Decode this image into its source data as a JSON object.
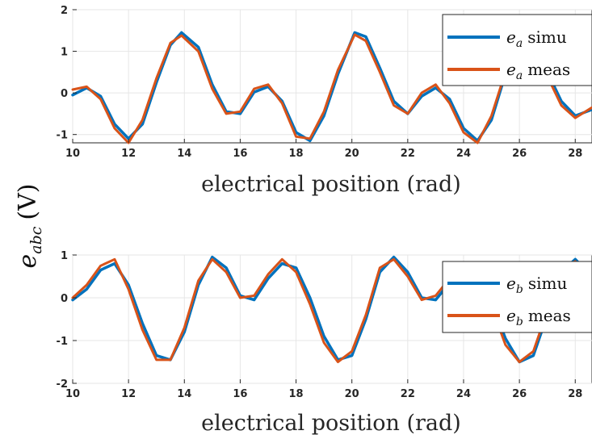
{
  "figure": {
    "ylabel_main": "e",
    "ylabel_sub": "abc",
    "ylabel_unit": "(V)"
  },
  "chart_data": [
    {
      "type": "line",
      "xlabel": "electrical position (rad)",
      "xlim": [
        10,
        28.6
      ],
      "ylim": [
        -1.2,
        2
      ],
      "xticks": [
        10,
        12,
        14,
        16,
        18,
        20,
        22,
        24,
        26,
        28
      ],
      "yticks": [
        -1,
        0,
        1,
        2
      ],
      "grid": true,
      "legend_position": "top-right",
      "series": [
        {
          "name": "e_a simu",
          "legend_symbol": "e",
          "legend_sub": "a",
          "legend_text": "simu",
          "color": "#0072BD",
          "x": [
            10.0,
            10.5,
            11.0,
            11.5,
            12.0,
            12.5,
            13.0,
            13.5,
            13.9,
            14.5,
            15.0,
            15.5,
            16.0,
            16.5,
            17.0,
            17.5,
            18.0,
            18.5,
            19.0,
            19.5,
            20.1,
            20.5,
            21.0,
            21.5,
            22.0,
            22.5,
            23.0,
            23.5,
            24.0,
            24.5,
            25.0,
            25.5,
            26.0,
            26.5,
            27.0,
            27.5,
            28.0,
            28.6
          ],
          "values": [
            -0.05,
            0.12,
            -0.08,
            -0.75,
            -1.1,
            -0.75,
            0.25,
            1.15,
            1.45,
            1.1,
            0.2,
            -0.45,
            -0.5,
            0.02,
            0.15,
            -0.2,
            -0.95,
            -1.15,
            -0.55,
            0.45,
            1.45,
            1.35,
            0.6,
            -0.2,
            -0.5,
            -0.08,
            0.12,
            -0.15,
            -0.85,
            -1.15,
            -0.65,
            0.45,
            1.45,
            1.3,
            0.5,
            -0.2,
            -0.55,
            -0.4
          ]
        },
        {
          "name": "e_a meas",
          "legend_symbol": "e",
          "legend_sub": "a",
          "legend_text": "meas",
          "color": "#D95319",
          "x": [
            10.0,
            10.5,
            11.0,
            11.5,
            12.0,
            12.5,
            13.0,
            13.5,
            13.9,
            14.5,
            15.0,
            15.5,
            16.0,
            16.5,
            17.0,
            17.5,
            18.0,
            18.5,
            19.0,
            19.5,
            20.1,
            20.5,
            21.0,
            21.5,
            22.0,
            22.5,
            23.0,
            23.5,
            24.0,
            24.5,
            25.0,
            25.5,
            26.0,
            26.5,
            27.0,
            27.5,
            28.0,
            28.6
          ],
          "values": [
            0.08,
            0.15,
            -0.15,
            -0.85,
            -1.2,
            -0.65,
            0.35,
            1.2,
            1.38,
            1.0,
            0.1,
            -0.5,
            -0.45,
            0.1,
            0.2,
            -0.25,
            -1.05,
            -1.1,
            -0.45,
            0.55,
            1.4,
            1.25,
            0.5,
            -0.3,
            -0.5,
            0.0,
            0.2,
            -0.25,
            -0.95,
            -1.2,
            -0.55,
            0.5,
            1.4,
            1.2,
            0.4,
            -0.3,
            -0.6,
            -0.35
          ]
        }
      ]
    },
    {
      "type": "line",
      "xlabel": "electrical position (rad)",
      "xlim": [
        10,
        28.6
      ],
      "ylim": [
        -2,
        1
      ],
      "xticks": [
        10,
        12,
        14,
        16,
        18,
        20,
        22,
        24,
        26,
        28
      ],
      "yticks": [
        -2,
        -1,
        0,
        1
      ],
      "grid": true,
      "legend_position": "right",
      "series": [
        {
          "name": "e_b simu",
          "legend_symbol": "e",
          "legend_sub": "b",
          "legend_text": "simu",
          "color": "#0072BD",
          "x": [
            10.0,
            10.5,
            11.0,
            11.5,
            12.0,
            12.5,
            13.0,
            13.5,
            14.0,
            14.5,
            15.0,
            15.5,
            16.0,
            16.5,
            17.0,
            17.5,
            18.0,
            18.5,
            19.0,
            19.5,
            20.0,
            20.5,
            21.0,
            21.5,
            22.0,
            22.5,
            23.0,
            23.5,
            24.0,
            24.5,
            25.0,
            25.5,
            26.0,
            26.5,
            27.0,
            27.5,
            28.0,
            28.6
          ],
          "values": [
            -0.05,
            0.2,
            0.65,
            0.8,
            0.3,
            -0.6,
            -1.35,
            -1.45,
            -0.8,
            0.3,
            0.95,
            0.7,
            0.05,
            -0.05,
            0.45,
            0.8,
            0.7,
            0.0,
            -0.9,
            -1.45,
            -1.35,
            -0.5,
            0.6,
            0.95,
            0.6,
            0.0,
            -0.05,
            0.35,
            0.7,
            0.6,
            -0.1,
            -0.95,
            -1.5,
            -1.35,
            -0.4,
            0.6,
            0.9,
            0.5
          ]
        },
        {
          "name": "e_b meas",
          "legend_symbol": "e",
          "legend_sub": "b",
          "legend_text": "meas",
          "color": "#D95319",
          "x": [
            10.0,
            10.5,
            11.0,
            11.5,
            12.0,
            12.5,
            13.0,
            13.5,
            14.0,
            14.5,
            15.0,
            15.5,
            16.0,
            16.5,
            17.0,
            17.5,
            18.0,
            18.5,
            19.0,
            19.5,
            20.0,
            20.5,
            21.0,
            21.5,
            22.0,
            22.5,
            23.0,
            23.5,
            24.0,
            24.5,
            25.0,
            25.5,
            26.0,
            26.5,
            27.0,
            27.5,
            28.0,
            28.6
          ],
          "values": [
            0.0,
            0.3,
            0.75,
            0.9,
            0.2,
            -0.75,
            -1.45,
            -1.45,
            -0.7,
            0.4,
            0.9,
            0.6,
            0.0,
            0.05,
            0.55,
            0.9,
            0.6,
            -0.15,
            -1.05,
            -1.5,
            -1.25,
            -0.4,
            0.7,
            0.9,
            0.5,
            -0.05,
            0.05,
            0.45,
            0.8,
            0.5,
            -0.2,
            -1.1,
            -1.5,
            -1.25,
            -0.3,
            0.7,
            0.85,
            0.4
          ]
        }
      ]
    }
  ]
}
